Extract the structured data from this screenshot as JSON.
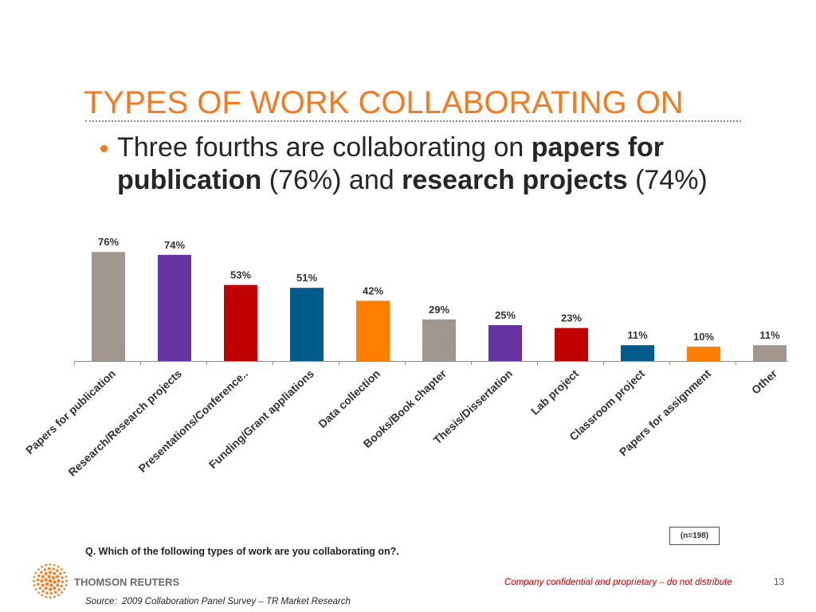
{
  "slide": {
    "title": "TYPES OF WORK COLLABORATING ON",
    "bullet_icon": "bullet-dot-icon",
    "bullet": {
      "line_1": {
        "regular": "Three fourths are collaborating on",
        "bold": "papers for"
      },
      "line_2": {
        "bold_1": "publication",
        "regular_1": "(76%) and",
        "bold_2": "research projects",
        "regular_2": "(74%)"
      }
    },
    "sample_size": "(n=198)",
    "question": "Q. Which of the following types of work are you collaborating on?."
  },
  "footer": {
    "logo_icon": "thomson-reuters-dot-sphere-icon",
    "logo_text": "THOMSON REUTERS",
    "confidential_notice": "Company confidential and proprietary – do not distribute",
    "page_number": "13",
    "source": "Source:  2009 Collaboration Panel Survey – TR Market Research"
  },
  "colors": {
    "title": "#F47B20",
    "bullet": "#F47B20",
    "logo": "#F47B20",
    "confidential_notice": "#CC0000"
  },
  "chart_data": {
    "type": "bar",
    "title": "",
    "xlabel": "",
    "ylabel": "",
    "ylim": [
      0,
      100
    ],
    "grid": false,
    "legend": "none",
    "categories": [
      "Papers for publication",
      "Research/Research projects",
      "Presentations/Conference..",
      "Funding/Grant appliations",
      "Data collection",
      "Books/Book chapter",
      "Thesis/Dissertation",
      "Lab project",
      "Classroom project",
      "Papers for assignment",
      "Other"
    ],
    "values": [
      76,
      74,
      53,
      51,
      42,
      29,
      25,
      23,
      11,
      10,
      11
    ],
    "data_labels": [
      "76%",
      "74%",
      "53%",
      "51%",
      "42%",
      "29%",
      "25%",
      "23%",
      "11%",
      "10%",
      "11%"
    ],
    "bar_colors": [
      "#A1978E",
      "#6633A3",
      "#C00000",
      "#005B8C",
      "#FF8000",
      "#A1978E",
      "#6633A3",
      "#C00000",
      "#005B8C",
      "#FF8000",
      "#A1978E"
    ]
  }
}
